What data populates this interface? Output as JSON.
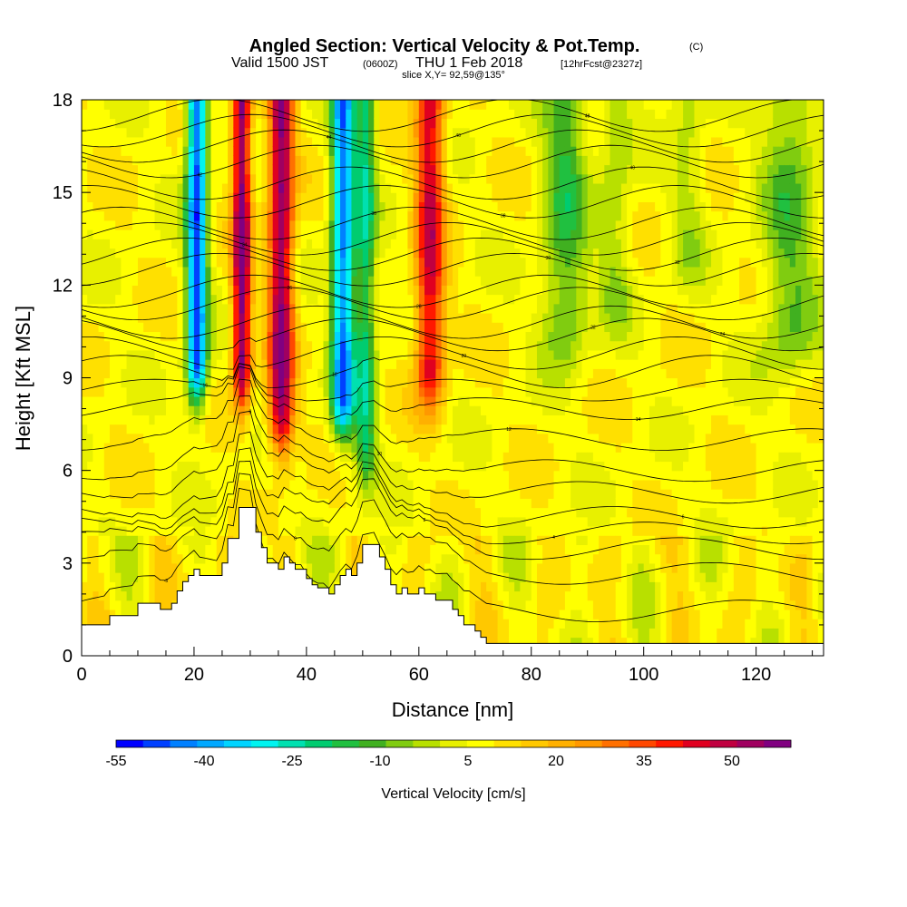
{
  "chart_data": {
    "type": "heatmap",
    "title": "Angled Section: Vertical Velocity & Pot.Temp.",
    "title_units": "(C)",
    "subtitle": {
      "part1": "Valid 1500 JST",
      "part2": "(0600Z)",
      "part3": "THU 1 Feb 2018",
      "part4": "[12hrFcst@2327z]"
    },
    "subtitle2": "slice X,Y= 92,59@135°",
    "xlabel": "Distance [nm]",
    "ylabel": "Height [Kft MSL]",
    "xlim": [
      0,
      132
    ],
    "ylim": [
      0,
      18
    ],
    "x_ticks": [
      0,
      20,
      40,
      60,
      80,
      100,
      120
    ],
    "y_ticks": [
      0,
      3,
      6,
      9,
      12,
      15,
      18
    ],
    "grid": false,
    "colorbar": {
      "title": "Vertical Velocity [cm/s]",
      "tick_labels": [
        "-55",
        "-40",
        "-25",
        "-10",
        "5",
        "20",
        "35",
        "50"
      ],
      "colors": [
        "#0000ff",
        "#0040ff",
        "#0080ff",
        "#00a8ff",
        "#00d4ff",
        "#00f4f0",
        "#00e0b0",
        "#00cc70",
        "#20c040",
        "#40b020",
        "#80cc10",
        "#b8e000",
        "#e8f000",
        "#ffff00",
        "#ffe000",
        "#ffc800",
        "#ffb000",
        "#ff9800",
        "#ff7000",
        "#ff4800",
        "#ff1800",
        "#e00020",
        "#c00040",
        "#a00060",
        "#800080"
      ]
    },
    "w_columns": [
      {
        "x": 20.5,
        "amp": -60,
        "width": 1.8,
        "z_bottom": 9.5
      },
      {
        "x": 28.5,
        "amp": 55,
        "width": 1.6,
        "z_bottom": 9.5
      },
      {
        "x": 35.5,
        "amp": 52,
        "width": 2.2,
        "z_bottom": 8.0
      },
      {
        "x": 46.5,
        "amp": -55,
        "width": 2.0,
        "z_bottom": 8.5
      },
      {
        "x": 50.5,
        "amp": -30,
        "width": 1.8,
        "z_bottom": 7.0
      },
      {
        "x": 62.0,
        "amp": 42,
        "width": 2.5,
        "z_bottom": 9.5
      },
      {
        "x": 86.0,
        "amp": -22,
        "width": 4.0,
        "z_bottom": 11.0
      },
      {
        "x": 95.0,
        "amp": -12,
        "width": 3.0,
        "z_bottom": 12.0
      },
      {
        "x": 126.0,
        "amp": -18,
        "width": 5.0,
        "z_bottom": 10.5
      },
      {
        "x": 108.0,
        "amp": -10,
        "width": 3.0,
        "z_bottom": 13.5
      }
    ],
    "terrain": {
      "x": [
        0,
        4,
        5,
        9,
        10,
        13,
        14,
        15,
        16,
        17,
        18,
        19,
        20,
        21,
        22,
        24,
        25,
        26,
        28,
        29,
        30,
        31,
        32,
        33,
        35,
        36,
        37,
        38,
        40,
        41,
        42,
        44,
        45,
        46,
        47,
        48,
        49,
        50,
        52,
        53,
        54,
        55,
        56,
        57,
        58,
        60,
        61,
        63,
        66,
        67,
        68,
        70,
        71,
        72,
        132
      ],
      "h": [
        1.0,
        1.0,
        1.3,
        1.3,
        1.7,
        1.7,
        1.5,
        1.5,
        1.7,
        2.1,
        2.4,
        2.6,
        2.8,
        2.6,
        2.6,
        2.6,
        3.0,
        3.8,
        4.8,
        4.8,
        4.8,
        4.0,
        3.5,
        3.0,
        2.8,
        3.2,
        3.0,
        2.8,
        2.5,
        2.3,
        2.2,
        2.0,
        2.3,
        2.6,
        2.8,
        2.6,
        3.0,
        3.6,
        3.6,
        3.2,
        2.8,
        2.3,
        2.0,
        2.2,
        2.0,
        2.2,
        2.0,
        1.8,
        1.5,
        1.3,
        1.0,
        0.8,
        0.6,
        0.4,
        0.4
      ]
    },
    "theta_contours": {
      "z_at_x0": [
        1.5,
        2.7,
        3.5,
        4.0,
        4.5,
        5.3,
        6.0,
        7.0,
        8.0,
        8.6,
        9.2,
        9.8,
        10.4,
        10.8,
        11.4,
        11.8,
        12.5,
        13.0,
        13.5,
        14.0,
        14.7,
        15.3,
        16.0,
        16.5,
        17.0,
        17.5
      ],
      "labels": [
        "-5",
        "0",
        "2",
        "4",
        "6",
        "8",
        "10",
        "12",
        "14",
        "16",
        "18",
        "20",
        "22",
        "24",
        "26",
        "28",
        "30",
        "32",
        "34",
        "36",
        "38",
        "40",
        "42",
        "44",
        "46",
        "48"
      ]
    }
  }
}
